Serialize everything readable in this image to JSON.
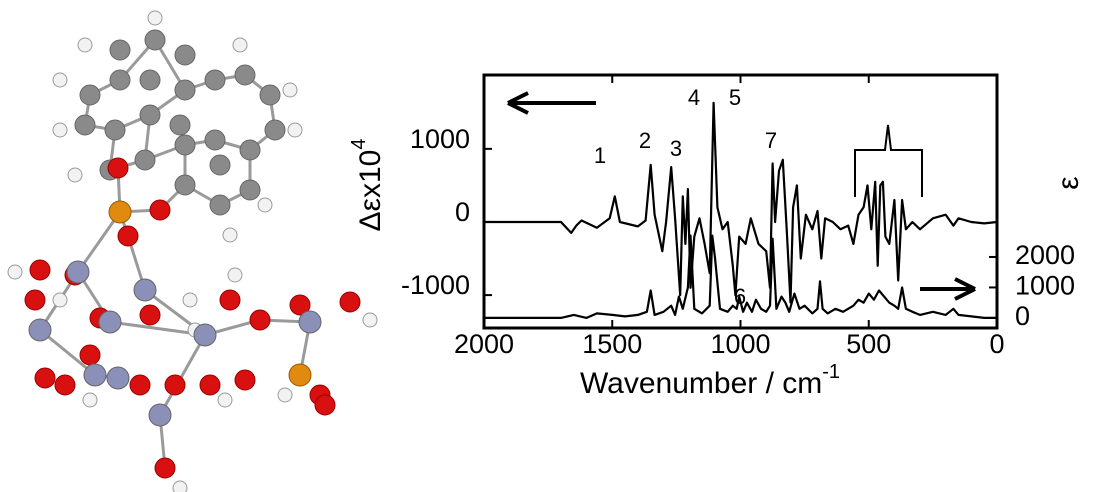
{
  "chart_data": {
    "type": "line",
    "xlabel": "Wavenumber / cm",
    "xlabel_exponent": "-1",
    "ylabel": "Δεx10",
    "ylabel_exponent": "4",
    "y2label": "ε",
    "xlim": [
      2000,
      0
    ],
    "xticks": [
      2000,
      1500,
      1000,
      500,
      0
    ],
    "ylim": [
      -1450,
      2010
    ],
    "yticks": [
      1000,
      0,
      -1000
    ],
    "y2lim": [
      -330,
      7970
    ],
    "y2ticks": [
      2000,
      1000,
      0
    ],
    "annotations": [
      "1",
      "2",
      "3",
      "4",
      "5",
      "6",
      "7"
    ],
    "series": [
      {
        "color": "#000000",
        "x": [
          2000,
          1800,
          1700,
          1660,
          1640,
          1620,
          1560,
          1510,
          1490,
          1470,
          1400,
          1370,
          1350,
          1335,
          1305,
          1290,
          1270,
          1255,
          1235,
          1225,
          1215,
          1205,
          1195,
          1180,
          1160,
          1140,
          1120,
          1105,
          1090,
          1070,
          1050,
          1030,
          1020,
          1005,
          980,
          960,
          930,
          900,
          885,
          875,
          865,
          850,
          835,
          820,
          805,
          795,
          780,
          765,
          745,
          720,
          700,
          685,
          670,
          640,
          610,
          580,
          560,
          540,
          520,
          505,
          490,
          475,
          465,
          455,
          445,
          435,
          420,
          400,
          385,
          370,
          355,
          330,
          300,
          250,
          200,
          170,
          150,
          100,
          50,
          0
        ],
        "values": [
          0,
          0,
          0,
          -150,
          -50,
          20,
          -80,
          50,
          350,
          0,
          -60,
          20,
          780,
          100,
          -400,
          0,
          750,
          50,
          -1000,
          350,
          -300,
          450,
          -900,
          -200,
          50,
          -300,
          -700,
          1630,
          200,
          -100,
          0,
          -600,
          -1000,
          -200,
          -300,
          50,
          -300,
          -400,
          -900,
          800,
          0,
          700,
          850,
          -100,
          -1100,
          200,
          500,
          -500,
          100,
          -100,
          150,
          -500,
          50,
          0,
          -100,
          -50,
          -300,
          100,
          200,
          500,
          -100,
          550,
          -600,
          500,
          550,
          -200,
          -300,
          300,
          -800,
          300,
          -100,
          0,
          -100,
          50,
          100,
          -50,
          50,
          0,
          -20,
          0
        ]
      },
      {
        "color": "#000000",
        "axis": "y2",
        "x": [
          2000,
          1800,
          1700,
          1650,
          1600,
          1560,
          1500,
          1450,
          1400,
          1365,
          1350,
          1335,
          1300,
          1270,
          1255,
          1240,
          1225,
          1205,
          1195,
          1180,
          1150,
          1120,
          1110,
          1100,
          1080,
          1050,
          1030,
          1015,
          1005,
          990,
          975,
          955,
          940,
          920,
          900,
          885,
          875,
          860,
          840,
          825,
          810,
          790,
          770,
          750,
          720,
          700,
          690,
          680,
          660,
          630,
          600,
          560,
          540,
          520,
          500,
          480,
          460,
          440,
          420,
          400,
          385,
          370,
          355,
          330,
          300,
          250,
          200,
          170,
          150,
          100,
          50,
          0
        ],
        "values": [
          0,
          0,
          0,
          100,
          0,
          150,
          100,
          50,
          100,
          200,
          900,
          100,
          200,
          400,
          100,
          700,
          300,
          1000,
          2700,
          300,
          150,
          400,
          2700,
          2000,
          300,
          200,
          400,
          300,
          700,
          200,
          500,
          200,
          600,
          300,
          200,
          400,
          2600,
          300,
          700,
          500,
          200,
          800,
          300,
          400,
          150,
          300,
          1200,
          300,
          150,
          300,
          200,
          400,
          600,
          500,
          800,
          600,
          900,
          700,
          500,
          400,
          300,
          1000,
          300,
          200,
          100,
          200,
          100,
          300,
          100,
          50,
          0,
          0
        ]
      }
    ]
  }
}
